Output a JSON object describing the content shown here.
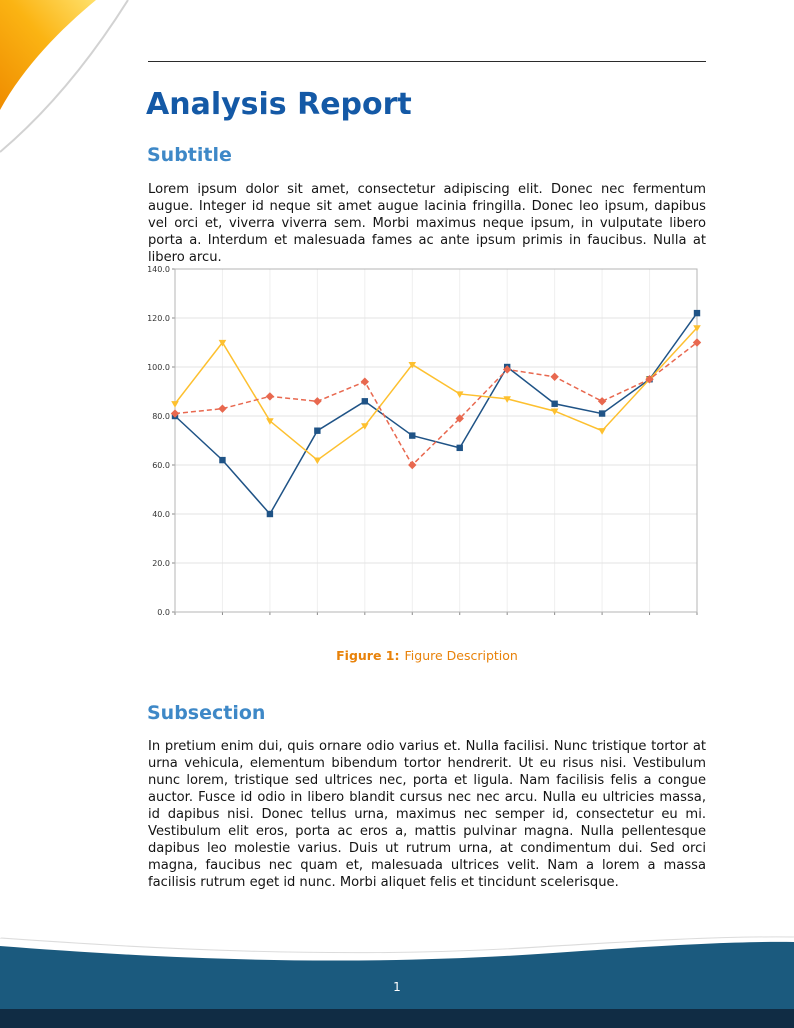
{
  "document": {
    "title": "Analysis Report",
    "page_number": "1"
  },
  "sections": {
    "subtitle": {
      "heading": "Subtitle",
      "body": "Lorem ipsum dolor sit amet, consectetur adipiscing elit.  Donec nec fermentum augue.  Integer id neque sit amet augue lacinia fringilla.  Donec leo ipsum, dapibus vel orci et, viverra viverra sem.  Morbi maximus neque ipsum, in vulputate libero porta a.  Interdum et malesuada fames ac ante ipsum primis in faucibus.  Nulla at libero arcu."
    },
    "subsection": {
      "heading": "Subsection",
      "body": "In pretium enim dui, quis ornare odio varius et.  Nulla facilisi.  Nunc tristique tortor at urna vehicula, elementum bibendum tortor hendrerit.  Ut eu risus nisi.  Vestibulum nunc lorem, tristique sed ultrices nec, porta et ligula.  Nam facilisis felis a congue auctor.  Fusce id odio in libero blandit cursus nec nec arcu.  Nulla eu ultricies massa, id dapibus nisi.  Donec tellus urna, maximus nec semper id, consectetur eu mi.  Vestibulum elit eros, porta ac eros a, mattis pulvinar magna.  Nulla pellentesque dapibus leo molestie varius.  Duis ut rutrum urna, at condimentum dui.  Sed orci magna, faucibus nec quam et, malesuada ultrices velit.  Nam a lorem a massa facilisis rutrum eget id nunc.  Morbi aliquet felis et tincidunt scelerisque."
    }
  },
  "figure": {
    "caption_label": "Figure 1:",
    "caption_text": "Figure Description"
  },
  "colors": {
    "title_blue": "#1459a6",
    "heading_blue": "#3e88c7",
    "caption_orange": "#e8820a",
    "footer_wave_blue": "#1b5a7e",
    "footer_bottom_navy": "#102c44",
    "corner_orange": "#f29400",
    "corner_yellow": "#ffd84d"
  },
  "chart_data": {
    "type": "line",
    "title": "",
    "xlabel": "",
    "ylabel": "",
    "x": [
      1,
      2,
      3,
      4,
      5,
      6,
      7,
      8,
      9,
      10,
      11,
      12
    ],
    "series": [
      {
        "name": "blue-series",
        "color": "#1f5386",
        "line_style": "solid",
        "marker": "square",
        "values": [
          80,
          62,
          40,
          74,
          86,
          72,
          67,
          100,
          85,
          81,
          95,
          122
        ]
      },
      {
        "name": "yellow-series",
        "color": "#fdc02f",
        "line_style": "solid",
        "marker": "triangle",
        "values": [
          85,
          110,
          78,
          62,
          76,
          101,
          89,
          87,
          82,
          74,
          95,
          116
        ]
      },
      {
        "name": "red-series",
        "color": "#e8684f",
        "line_style": "dashed",
        "marker": "diamond",
        "values": [
          81,
          83,
          88,
          86,
          94,
          60,
          79,
          99,
          96,
          86,
          95,
          110
        ]
      }
    ],
    "ylim": [
      0,
      140
    ],
    "yticks": [
      0,
      20,
      40,
      60,
      80,
      100,
      120,
      140
    ],
    "ytick_labels": [
      "0.0",
      "20.0",
      "40.0",
      "60.0",
      "80.0",
      "100.0",
      "120.0",
      "140.0"
    ],
    "grid": true,
    "legend_position": "none"
  }
}
